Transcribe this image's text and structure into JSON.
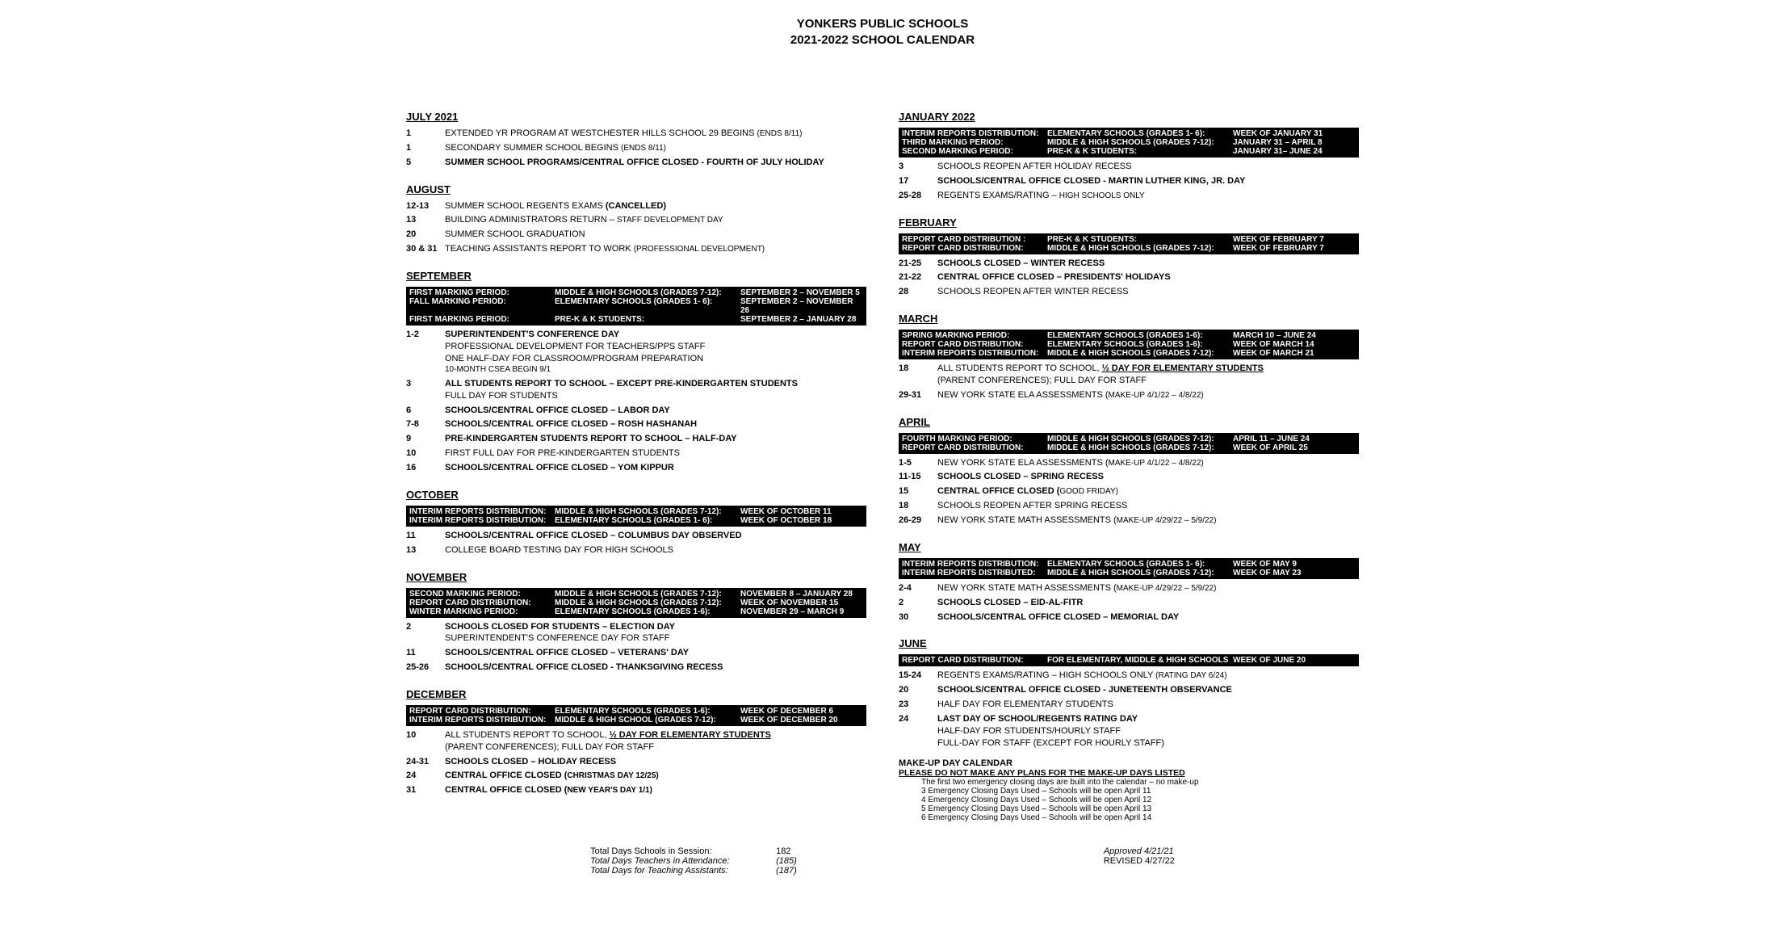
{
  "colors": {
    "bg": "#ffffff",
    "text": "#000000",
    "bar_bg": "#000000",
    "bar_text": "#ffffff"
  },
  "header": {
    "line1": "YONKERS PUBLIC SCHOOLS",
    "line2": "2021-2022 SCHOOL CALENDAR"
  },
  "left": [
    {
      "month": "JULY 2021",
      "events": [
        {
          "date": "1",
          "parts": [
            {
              "t": "EXTENDED YR PROGRAM AT WESTCHESTER HILLS SCHOOL 29 BEGINS "
            },
            {
              "t": "(ENDS 8/11)",
              "cls": "small"
            }
          ]
        },
        {
          "date": "1",
          "parts": [
            {
              "t": "SECONDARY SUMMER SCHOOL BEGINS "
            },
            {
              "t": "(ENDS 8/11)",
              "cls": "small"
            }
          ]
        },
        {
          "date": "5",
          "parts": [
            {
              "t": "SUMMER SCHOOL PROGRAMS/CENTRAL OFFICE CLOSED - FOURTH OF JULY HOLIDAY",
              "cls": "bold"
            }
          ]
        }
      ]
    },
    {
      "month": "AUGUST",
      "events": [
        {
          "date": "12-13",
          "parts": [
            {
              "t": "SUMMER SCHOOL REGENTS EXAMS "
            },
            {
              "t": "(CANCELLED)",
              "cls": "bold"
            }
          ]
        },
        {
          "date": "13",
          "parts": [
            {
              "t": "BUILDING ADMINISTRATORS RETURN – "
            },
            {
              "t": "STAFF DEVELOPMENT DAY",
              "cls": "small"
            }
          ]
        },
        {
          "date": "20",
          "parts": [
            {
              "t": "SUMMER SCHOOL GRADUATION"
            }
          ]
        },
        {
          "date": "30 & 31",
          "parts": [
            {
              "t": "TEACHING ASSISTANTS REPORT TO WORK "
            },
            {
              "t": "(PROFESSIONAL DEVELOPMENT)",
              "cls": "small"
            }
          ]
        }
      ]
    },
    {
      "month": "SEPTEMBER",
      "info": [
        {
          "c1": "FIRST MARKING PERIOD:",
          "c2": "MIDDLE & HIGH SCHOOLS (GRADES 7-12):",
          "c3": "SEPTEMBER 2 – NOVEMBER 5"
        },
        {
          "c1": "FALL MARKING PERIOD:",
          "c2": "ELEMENTARY SCHOOLS   (GRADES 1- 6):",
          "c3": "SEPTEMBER 2 – NOVEMBER 26"
        },
        {
          "c1": "FIRST MARKING PERIOD:",
          "c2": "PRE-K  & K STUDENTS:",
          "c3": "SEPTEMBER 2 – JANUARY 28"
        }
      ],
      "events": [
        {
          "date": "1-2",
          "parts": [
            {
              "t": "SUPERINTENDENT'S CONFERENCE DAY",
              "cls": "bold"
            },
            {
              "t": "PROFESSIONAL DEVELOPMENT FOR TEACHERS/PPS STAFF",
              "cls": "sub"
            },
            {
              "t": "ONE HALF-DAY FOR CLASSROOM/PROGRAM PREPARATION",
              "cls": "sub"
            },
            {
              "t": "10-MONTH CSEA BEGIN 9/1",
              "cls": "sub small"
            }
          ]
        },
        {
          "date": "3",
          "parts": [
            {
              "t": "ALL STUDENTS REPORT TO SCHOOL – EXCEPT PRE-KINDERGARTEN STUDENTS",
              "cls": "bold"
            },
            {
              "t": "FULL DAY FOR STUDENTS",
              "cls": "sub"
            }
          ]
        },
        {
          "date": "6",
          "parts": [
            {
              "t": "SCHOOLS/CENTRAL OFFICE CLOSED – LABOR DAY",
              "cls": "bold"
            }
          ]
        },
        {
          "date": "7-8",
          "parts": [
            {
              "t": "SCHOOLS/CENTRAL OFFICE CLOSED – ROSH HASHANAH",
              "cls": "bold"
            }
          ]
        },
        {
          "date": "9",
          "parts": [
            {
              "t": "PRE-KINDERGARTEN STUDENTS REPORT TO SCHOOL – HALF-DAY",
              "cls": "bold"
            }
          ]
        },
        {
          "date": "10",
          "parts": [
            {
              "t": "FIRST FULL DAY FOR PRE-KINDERGARTEN STUDENTS"
            }
          ]
        },
        {
          "date": "16",
          "parts": [
            {
              "t": "SCHOOLS/CENTRAL OFFICE CLOSED – YOM KIPPUR",
              "cls": "bold"
            }
          ]
        }
      ]
    },
    {
      "month": "OCTOBER",
      "info": [
        {
          "c1": "INTERIM REPORTS DISTRIBUTION:",
          "c2": "MIDDLE & HIGH SCHOOLS (GRADES 7-12):",
          "c3": "WEEK OF OCTOBER 11"
        },
        {
          "c1": "INTERIM REPORTS DISTRIBUTION:",
          "c2": "ELEMENTARY SCHOOLS    (GRADES 1- 6):",
          "c3": "WEEK OF OCTOBER 18"
        }
      ],
      "events": [
        {
          "date": "11",
          "parts": [
            {
              "t": "SCHOOLS/CENTRAL OFFICE CLOSED – COLUMBUS DAY OBSERVED",
              "cls": "bold"
            }
          ]
        },
        {
          "date": "13",
          "parts": [
            {
              "t": "COLLEGE BOARD TESTING DAY FOR HIGH SCHOOLS"
            }
          ]
        }
      ]
    },
    {
      "month": "NOVEMBER",
      "info": [
        {
          "c1": "SECOND MARKING PERIOD:",
          "c2": "MIDDLE & HIGH SCHOOLS (GRADES 7-12):",
          "c3": "NOVEMBER 8 – JANUARY 28"
        },
        {
          "c1": "REPORT CARD DISTRIBUTION:",
          "c2": "MIDDLE & HIGH SCHOOLS (GRADES 7-12):",
          "c3": "WEEK OF NOVEMBER 15"
        },
        {
          "c1": "WINTER MARKING PERIOD:",
          "c2": "ELEMENTARY SCHOOLS (GRADES 1-6):",
          "c3": "NOVEMBER 29 – MARCH 9"
        }
      ],
      "events": [
        {
          "date": "2",
          "parts": [
            {
              "t": "SCHOOLS CLOSED FOR STUDENTS – ELECTION DAY",
              "cls": "bold"
            },
            {
              "t": "SUPERINTENDENT'S CONFERENCE DAY FOR STAFF",
              "cls": "sub"
            }
          ]
        },
        {
          "date": "11",
          "parts": [
            {
              "t": "SCHOOLS/CENTRAL OFFICE CLOSED – VETERANS' DAY",
              "cls": "bold"
            }
          ]
        },
        {
          "date": "25-26",
          "parts": [
            {
              "t": "SCHOOLS/CENTRAL OFFICE CLOSED - THANKSGIVING RECESS",
              "cls": "bold"
            }
          ]
        }
      ]
    },
    {
      "month": "DECEMBER",
      "info": [
        {
          "c1": "REPORT CARD DISTRIBUTION:",
          "c2": "ELEMENTARY SCHOOLS (GRADES 1-6):",
          "c3": "WEEK OF DECEMBER 6"
        },
        {
          "c1": "INTERIM REPORTS DISTRIBUTION:",
          "c2": "MIDDLE & HIGH SCHOOL (GRADES 7-12):",
          "c3": "WEEK OF DECEMBER 20"
        }
      ],
      "events": [
        {
          "date": "10",
          "parts": [
            {
              "t": "ALL STUDENTS REPORT TO SCHOOL, "
            },
            {
              "t": "½ DAY FOR ELEMENTARY STUDENTS",
              "cls": "bold underline"
            },
            {
              "t": "(PARENT CONFERENCES); FULL DAY FOR STAFF",
              "cls": "sub"
            }
          ]
        },
        {
          "date": "24-31",
          "parts": [
            {
              "t": "SCHOOLS CLOSED – HOLIDAY RECESS",
              "cls": "bold"
            }
          ]
        },
        {
          "date": "24",
          "parts": [
            {
              "t": "CENTRAL OFFICE CLOSED (",
              "cls": "bold"
            },
            {
              "t": "CHRISTMAS DAY 12/25)",
              "cls": "bold small"
            }
          ]
        },
        {
          "date": "31",
          "parts": [
            {
              "t": "CENTRAL OFFICE CLOSED (",
              "cls": "bold"
            },
            {
              "t": "NEW YEAR'S DAY 1/1)",
              "cls": "bold small"
            }
          ]
        }
      ]
    }
  ],
  "right": [
    {
      "month": "JANUARY 2022",
      "info": [
        {
          "c1": "INTERIM REPORTS DISTRIBUTION:",
          "c2": "ELEMENTARY SCHOOLS    (GRADES 1- 6):",
          "c3": "WEEK OF JANUARY 31"
        },
        {
          "c1": "THIRD MARKING PERIOD:",
          "c2": "MIDDLE & HIGH SCHOOLS (GRADES 7-12):",
          "c3": "JANUARY 31 – APRIL 8"
        },
        {
          "c1": "SECOND MARKING PERIOD:",
          "c2": "PRE-K & K STUDENTS:",
          "c3": "JANUARY 31– JUNE 24"
        }
      ],
      "events": [
        {
          "date": "3",
          "parts": [
            {
              "t": "SCHOOLS REOPEN AFTER HOLIDAY RECESS"
            }
          ]
        },
        {
          "date": "17",
          "parts": [
            {
              "t": "SCHOOLS/CENTRAL OFFICE CLOSED - MARTIN LUTHER KING, JR. DAY",
              "cls": "bold"
            }
          ]
        },
        {
          "date": "25-28",
          "parts": [
            {
              "t": "REGENTS EXAMS/RATING – "
            },
            {
              "t": "HIGH SCHOOLS ONLY",
              "cls": "small"
            }
          ]
        }
      ]
    },
    {
      "month": "FEBRUARY",
      "info": [
        {
          "c1": "REPORT CARD DISTRIBUTION :",
          "c2": "PRE-K & K STUDENTS:",
          "c3": "WEEK OF FEBRUARY 7"
        },
        {
          "c1": "REPORT CARD DISTRIBUTION:",
          "c2": "MIDDLE & HIGH SCHOOLS (GRADES 7-12):",
          "c3": "WEEK OF FEBRUARY 7"
        }
      ],
      "events": [
        {
          "date": "21-25",
          "parts": [
            {
              "t": "SCHOOLS CLOSED – WINTER RECESS",
              "cls": "bold"
            }
          ]
        },
        {
          "date": "21-22",
          "parts": [
            {
              "t": "CENTRAL OFFICE CLOSED – PRESIDENTS' HOLIDAYS",
              "cls": "bold"
            }
          ]
        },
        {
          "date": "28",
          "parts": [
            {
              "t": "SCHOOLS REOPEN AFTER WINTER RECESS"
            }
          ]
        }
      ]
    },
    {
      "month": "MARCH",
      "info": [
        {
          "c1": "SPRING MARKING PERIOD:",
          "c2": "ELEMENTARY SCHOOLS    (GRADES 1-6):",
          "c3": "MARCH 10 – JUNE 24"
        },
        {
          "c1": "REPORT CARD DISTRIBUTION:",
          "c2": "ELEMENTARY SCHOOLS    (GRADES 1-6):",
          "c3": "WEEK OF MARCH 14"
        },
        {
          "c1": "INTERIM REPORTS DISTRIBUTION:",
          "c2": "MIDDLE & HIGH SCHOOLS (GRADES 7-12):",
          "c3": "WEEK OF MARCH 21"
        }
      ],
      "events": [
        {
          "date": "18",
          "parts": [
            {
              "t": "ALL STUDENTS REPORT TO SCHOOL, "
            },
            {
              "t": "½ DAY FOR ELEMENTARY STUDENTS",
              "cls": "bold underline"
            },
            {
              "t": "(PARENT CONFERENCES); FULL DAY FOR STAFF",
              "cls": "sub"
            }
          ]
        },
        {
          "date": "29-31",
          "parts": [
            {
              "t": "NEW YORK STATE ELA ASSESSMENTS ("
            },
            {
              "t": "MAKE-UP 4/1/22 – 4/8/22)",
              "cls": "small"
            }
          ]
        }
      ]
    },
    {
      "month": "APRIL",
      "info": [
        {
          "c1": "FOURTH MARKING PERIOD:",
          "c2": "MIDDLE & HIGH SCHOOLS (GRADES 7-12):",
          "c3": "APRIL 11 – JUNE 24"
        },
        {
          "c1": "REPORT CARD DISTRIBUTION:",
          "c2": "MIDDLE & HIGH SCHOOLS (GRADES 7-12):",
          "c3": "WEEK OF APRIL 25"
        }
      ],
      "events": [
        {
          "date": "1-5",
          "parts": [
            {
              "t": "NEW YORK STATE ELA ASSESSMENTS ("
            },
            {
              "t": "MAKE-UP 4/1/22 – 4/8/22)",
              "cls": "small"
            }
          ]
        },
        {
          "date": "11-15",
          "parts": [
            {
              "t": "SCHOOLS CLOSED – SPRING RECESS",
              "cls": "bold"
            }
          ]
        },
        {
          "date": "15",
          "parts": [
            {
              "t": "CENTRAL OFFICE CLOSED (",
              "cls": "bold"
            },
            {
              "t": "GOOD FRIDAY)",
              "cls": "small"
            }
          ]
        },
        {
          "date": "18",
          "parts": [
            {
              "t": "SCHOOLS REOPEN AFTER SPRING RECESS"
            }
          ]
        },
        {
          "date": "26-29",
          "parts": [
            {
              "t": "NEW YORK STATE MATH ASSESSMENTS ("
            },
            {
              "t": "MAKE-UP 4/29/22 – 5/9/22)",
              "cls": "small"
            }
          ]
        }
      ]
    },
    {
      "month": "MAY",
      "info": [
        {
          "c1": "INTERIM REPORTS DISTRIBUTION:",
          "c2": "ELEMENTARY SCHOOLS    (GRADES 1- 6):",
          "c3": "WEEK OF MAY 9"
        },
        {
          "c1": "INTERIM REPORTS DISTRIBUTED:",
          "c2": "MIDDLE & HIGH SCHOOLS (GRADES 7-12):",
          "c3": "WEEK OF MAY 23"
        }
      ],
      "events": [
        {
          "date": "2-4",
          "parts": [
            {
              "t": "NEW YORK STATE MATH ASSESSMENTS ("
            },
            {
              "t": "MAKE-UP 4/29/22 – 5/9/22)",
              "cls": "small"
            }
          ]
        },
        {
          "date": "2",
          "parts": [
            {
              "t": "SCHOOLS CLOSED – EID-AL-FITR",
              "cls": "bold"
            }
          ]
        },
        {
          "date": "30",
          "parts": [
            {
              "t": "SCHOOLS/CENTRAL OFFICE CLOSED  – MEMORIAL DAY",
              "cls": "bold"
            }
          ]
        }
      ]
    },
    {
      "month": "JUNE",
      "info": [
        {
          "c1": "REPORT CARD DISTRIBUTION:",
          "c2": "FOR ELEMENTARY, MIDDLE & HIGH SCHOOLS",
          "c3": "WEEK OF JUNE 20"
        }
      ],
      "events": [
        {
          "date": "15-24",
          "parts": [
            {
              "t": "REGENTS EXAMS/RATING – HIGH SCHOOLS ONLY "
            },
            {
              "t": "(RATING DAY 6/24)",
              "cls": "small"
            }
          ]
        },
        {
          "date": "20",
          "parts": [
            {
              "t": "SCHOOLS/CENTRAL OFFICE CLOSED - JUNETEENTH OBSERVANCE",
              "cls": "bold"
            }
          ]
        },
        {
          "date": "23",
          "parts": [
            {
              "t": "HALF DAY FOR ELEMENTARY STUDENTS"
            }
          ]
        },
        {
          "date": "24",
          "parts": [
            {
              "t": "LAST DAY OF SCHOOL/REGENTS RATING DAY",
              "cls": "bold"
            },
            {
              "t": "HALF-DAY FOR STUDENTS/HOURLY STAFF",
              "cls": "sub"
            },
            {
              "t": "FULL-DAY FOR STAFF (EXCEPT FOR HOURLY STAFF)",
              "cls": "sub"
            }
          ]
        }
      ]
    }
  ],
  "makeup": {
    "title": "MAKE-UP DAY CALENDAR",
    "underline": "PLEASE DO NOT MAKE ANY PLANS FOR THE MAKE-UP DAYS LISTED",
    "lines": [
      "The first two emergency closing days are built into the calendar – no make-up",
      "3 Emergency Closing Days Used – Schools will be open April 11",
      "4 Emergency Closing Days Used – Schools will be open April 12",
      "5 Emergency Closing Days Used – Schools will be open April 13",
      "6 Emergency Closing Days Used – Schools will be open April 14"
    ]
  },
  "footer_left": [
    {
      "label": "Total Days Schools in Session:",
      "val": "182",
      "cls": "bold"
    },
    {
      "label": "Total Days Teachers in Attendance:",
      "val": "(185)",
      "cls": "bold italic"
    },
    {
      "label": "Total Days for Teaching Assistants:",
      "val": "(187)",
      "cls": "bold italic"
    }
  ],
  "footer_right": [
    {
      "label": "Approved 4/21/21",
      "cls": "bold italic"
    },
    {
      "label": "REVISED 4/27/22",
      "cls": "bold"
    }
  ]
}
